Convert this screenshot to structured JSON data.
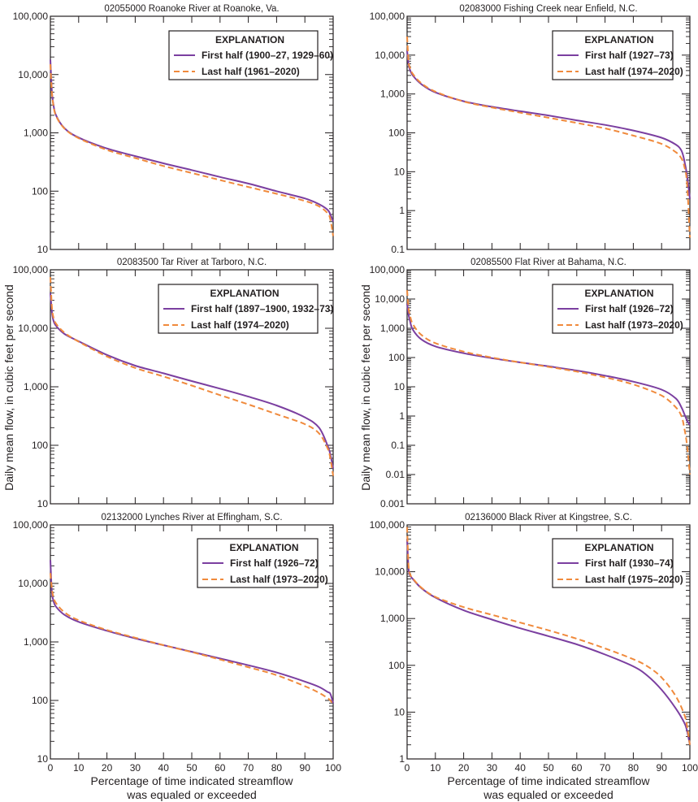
{
  "figure": {
    "ylabel": "Daily mean flow, in cubic feet per second",
    "xlabel_line1": "Percentage of time indicated streamflow",
    "xlabel_line2": "was equaled or exceeded",
    "colors": {
      "first_half": "#7b3fa0",
      "last_half": "#f08a3c",
      "axis": "#231f20"
    }
  },
  "chart_data": [
    {
      "type": "line",
      "title": "02055000 Roanoke River at Roanoke, Va.",
      "xlabel": "Percentage of time indicated streamflow was equaled or exceeded",
      "ylabel": "Daily mean flow, in cubic feet per second",
      "xlim": [
        0,
        100
      ],
      "ylim": [
        10,
        100000
      ],
      "yscale": "log",
      "xticks": [
        0,
        10,
        20,
        30,
        40,
        50,
        60,
        70,
        80,
        90,
        100
      ],
      "yticks": [
        10,
        100,
        1000,
        10000,
        100000
      ],
      "ytick_labels": [
        "10",
        "100",
        "1,000",
        "10,000",
        "100,000"
      ],
      "legend_title": "EXPLANATION",
      "legend_position": "top-right",
      "x": [
        0,
        0.5,
        1,
        2,
        5,
        10,
        20,
        30,
        40,
        50,
        60,
        70,
        80,
        90,
        95,
        98,
        99,
        100
      ],
      "series": [
        {
          "name": "First half (1900–27, 1929–60)",
          "style": "solid",
          "values": [
            18000,
            5500,
            3200,
            2000,
            1200,
            830,
            540,
            400,
            300,
            230,
            175,
            135,
            100,
            75,
            60,
            48,
            40,
            30
          ]
        },
        {
          "name": "Last half (1961–2020)",
          "style": "dashed",
          "values": [
            15000,
            5200,
            3100,
            1950,
            1180,
            810,
            510,
            370,
            270,
            205,
            155,
            118,
            90,
            68,
            55,
            42,
            33,
            17
          ]
        }
      ]
    },
    {
      "type": "line",
      "title": "02083000 Fishing Creek near Enfield, N.C.",
      "xlabel": "Percentage of time indicated streamflow was equaled or exceeded",
      "ylabel": "Daily mean flow, in cubic feet per second",
      "xlim": [
        0,
        100
      ],
      "ylim": [
        0.1,
        100000
      ],
      "yscale": "log",
      "xticks": [
        0,
        10,
        20,
        30,
        40,
        50,
        60,
        70,
        80,
        90,
        100
      ],
      "yticks": [
        0.1,
        1,
        10,
        100,
        1000,
        10000,
        100000
      ],
      "ytick_labels": [
        "0.1",
        "1",
        "10",
        "100",
        "1,000",
        "10,000",
        "100,000"
      ],
      "legend_title": "EXPLANATION",
      "legend_position": "top-right",
      "x": [
        0,
        0.5,
        1,
        2,
        5,
        10,
        20,
        30,
        40,
        50,
        60,
        70,
        80,
        90,
        95,
        97,
        98,
        99,
        100
      ],
      "series": [
        {
          "name": "First half (1927–73)",
          "style": "solid",
          "values": [
            13000,
            6000,
            4200,
            3000,
            1800,
            1100,
            650,
            470,
            360,
            280,
            210,
            160,
            115,
            75,
            50,
            35,
            20,
            8,
            2
          ]
        },
        {
          "name": "Last half (1974–2020)",
          "style": "dashed",
          "values": [
            30000,
            7000,
            4800,
            3300,
            1900,
            1150,
            640,
            450,
            330,
            245,
            180,
            130,
            85,
            52,
            32,
            22,
            14,
            5,
            0.2
          ]
        }
      ]
    },
    {
      "type": "line",
      "title": "02083500 Tar River at Tarboro, N.C.",
      "xlabel": "Percentage of time indicated streamflow was equaled or exceeded",
      "ylabel": "Daily mean flow, in cubic feet per second",
      "xlim": [
        0,
        100
      ],
      "ylim": [
        10,
        100000
      ],
      "yscale": "log",
      "xticks": [
        0,
        10,
        20,
        30,
        40,
        50,
        60,
        70,
        80,
        90,
        100
      ],
      "yticks": [
        10,
        100,
        1000,
        10000,
        100000
      ],
      "ytick_labels": [
        "10",
        "100",
        "1,000",
        "10,000",
        "100,000"
      ],
      "legend_title": "EXPLANATION",
      "legend_position": "top-right",
      "x": [
        0,
        0.5,
        1,
        2,
        5,
        10,
        20,
        30,
        40,
        50,
        60,
        70,
        80,
        90,
        95,
        98,
        99,
        100
      ],
      "series": [
        {
          "name": "First half (1897–1900, 1932–73)",
          "style": "solid",
          "values": [
            40000,
            20000,
            14000,
            11000,
            8000,
            6000,
            3500,
            2300,
            1700,
            1250,
            930,
            680,
            480,
            300,
            200,
            100,
            70,
            40
          ]
        },
        {
          "name": "Last half (1974–2020)",
          "style": "dashed",
          "values": [
            75000,
            25000,
            16000,
            12000,
            8400,
            5900,
            3300,
            2100,
            1500,
            1050,
            720,
            500,
            340,
            230,
            160,
            90,
            60,
            30
          ]
        }
      ]
    },
    {
      "type": "line",
      "title": "02085500 Flat River at Bahama, N.C.",
      "xlabel": "Percentage of time indicated streamflow was equaled or exceeded",
      "ylabel": "Daily mean flow, in cubic feet per second",
      "xlim": [
        0,
        100
      ],
      "ylim": [
        0.001,
        100000
      ],
      "yscale": "log",
      "xticks": [
        0,
        10,
        20,
        30,
        40,
        50,
        60,
        70,
        80,
        90,
        100
      ],
      "yticks": [
        0.001,
        0.01,
        0.1,
        1,
        10,
        100,
        1000,
        10000,
        100000
      ],
      "ytick_labels": [
        "0.001",
        "0.01",
        "0.1",
        "1",
        "10",
        "100",
        "1,000",
        "10,000",
        "100,000"
      ],
      "legend_title": "EXPLANATION",
      "legend_position": "top-right",
      "x": [
        0,
        0.5,
        1,
        2,
        5,
        10,
        20,
        30,
        40,
        50,
        60,
        70,
        80,
        90,
        95,
        97,
        98,
        99,
        100
      ],
      "series": [
        {
          "name": "First half (1926–72)",
          "style": "solid",
          "values": [
            7000,
            3000,
            1800,
            900,
            420,
            240,
            140,
            95,
            68,
            50,
            36,
            24,
            15,
            8,
            4,
            2,
            1.2,
            0.7,
            0.5
          ]
        },
        {
          "name": "Last half (1973–2020)",
          "style": "dashed",
          "values": [
            20000,
            5000,
            2800,
            1400,
            600,
            310,
            160,
            100,
            68,
            48,
            33,
            21,
            12,
            5,
            2,
            1,
            0.4,
            0.1,
            0.01
          ]
        }
      ]
    },
    {
      "type": "line",
      "title": "02132000 Lynches River at Effingham, S.C.",
      "xlabel": "Percentage of time indicated streamflow was equaled or exceeded",
      "ylabel": "Daily mean flow, in cubic feet per second",
      "xlim": [
        0,
        100
      ],
      "ylim": [
        10,
        100000
      ],
      "yscale": "log",
      "xticks": [
        0,
        10,
        20,
        30,
        40,
        50,
        60,
        70,
        80,
        90,
        100
      ],
      "yticks": [
        10,
        100,
        1000,
        10000,
        100000
      ],
      "ytick_labels": [
        "10",
        "100",
        "1,000",
        "10,000",
        "100,000"
      ],
      "legend_title": "EXPLANATION",
      "legend_position": "top-right",
      "x": [
        0,
        0.5,
        1,
        2,
        5,
        10,
        20,
        30,
        40,
        50,
        60,
        70,
        80,
        90,
        95,
        98,
        99,
        100
      ],
      "series": [
        {
          "name": "First half (1926–72)",
          "style": "solid",
          "values": [
            25000,
            7500,
            5200,
            4000,
            2900,
            2200,
            1550,
            1150,
            880,
            680,
            520,
            400,
            300,
            210,
            170,
            140,
            130,
            90
          ]
        },
        {
          "name": "Last half (1973–2020)",
          "style": "dashed",
          "values": [
            15000,
            8500,
            6000,
            4600,
            3200,
            2350,
            1600,
            1180,
            880,
            670,
            500,
            370,
            270,
            175,
            135,
            110,
            100,
            85
          ]
        }
      ]
    },
    {
      "type": "line",
      "title": "02136000 Black River at Kingstree, S.C.",
      "xlabel": "Percentage of time indicated streamflow was equaled or exceeded",
      "ylabel": "Daily mean flow, in cubic feet per second",
      "xlim": [
        0,
        100
      ],
      "ylim": [
        1,
        100000
      ],
      "yscale": "log",
      "xticks": [
        0,
        10,
        20,
        30,
        40,
        50,
        60,
        70,
        80,
        90,
        100
      ],
      "yticks": [
        1,
        10,
        100,
        1000,
        10000,
        100000
      ],
      "ytick_labels": [
        "1",
        "10",
        "100",
        "1,000",
        "10,000",
        "100,000"
      ],
      "legend_title": "EXPLANATION",
      "legend_position": "top-right",
      "x": [
        0,
        0.5,
        1,
        2,
        5,
        10,
        20,
        30,
        40,
        50,
        60,
        70,
        80,
        85,
        90,
        95,
        98,
        99,
        100
      ],
      "series": [
        {
          "name": "First half (1930–74)",
          "style": "solid",
          "values": [
            50000,
            12000,
            8500,
            7000,
            4500,
            2800,
            1500,
            950,
            620,
            420,
            280,
            170,
            95,
            60,
            30,
            12,
            6,
            4,
            2
          ]
        },
        {
          "name": "Last half (1975–2020)",
          "style": "dashed",
          "values": [
            90000,
            14000,
            9000,
            7200,
            4600,
            2900,
            1750,
            1200,
            820,
            560,
            370,
            230,
            135,
            95,
            55,
            22,
            9,
            5,
            2
          ]
        }
      ]
    }
  ]
}
